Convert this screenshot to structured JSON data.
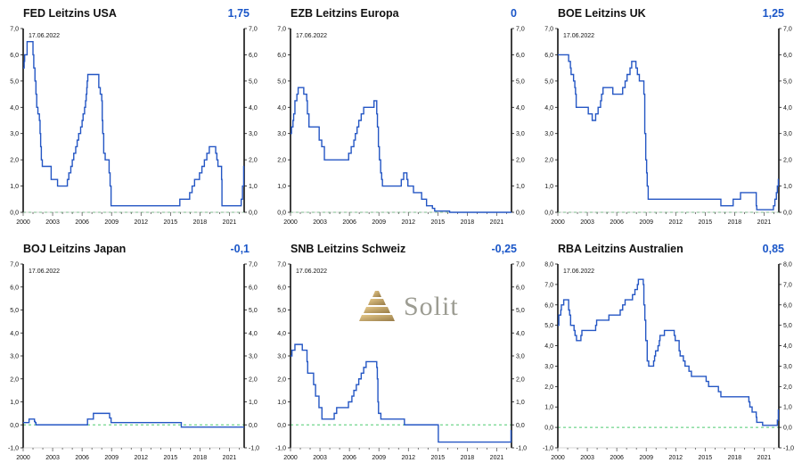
{
  "watermark": {
    "text": "Solit",
    "text_color": "#8f8f84",
    "pyramid_color_light": "#e3c27a",
    "pyramid_color_dark": "#8a6a2f"
  },
  "colors": {
    "line": "#2456c4",
    "value": "#1a56c8",
    "zero_line": "#4ecb71",
    "axis": "#111111"
  },
  "chart_data": [
    {
      "type": "line",
      "step": true,
      "title": "FED Leitzins USA",
      "current_value": "1,75",
      "annotation": "17.06.2022",
      "x_range": [
        2000,
        2022.5
      ],
      "y_range": [
        0,
        7
      ],
      "y_tick_step": 1,
      "x_ticks": [
        2000,
        2003,
        2006,
        2009,
        2012,
        2015,
        2018,
        2021
      ],
      "zero_line": true,
      "grid": false,
      "legend": false,
      "points": [
        [
          2000.0,
          5.5
        ],
        [
          2000.1,
          5.75
        ],
        [
          2000.15,
          6.0
        ],
        [
          2000.4,
          6.5
        ],
        [
          2001.0,
          6.0
        ],
        [
          2001.08,
          5.5
        ],
        [
          2001.2,
          5.0
        ],
        [
          2001.3,
          4.5
        ],
        [
          2001.38,
          4.0
        ],
        [
          2001.5,
          3.75
        ],
        [
          2001.65,
          3.5
        ],
        [
          2001.72,
          3.0
        ],
        [
          2001.78,
          2.5
        ],
        [
          2001.85,
          2.0
        ],
        [
          2001.95,
          1.75
        ],
        [
          2002.85,
          1.25
        ],
        [
          2003.5,
          1.0
        ],
        [
          2004.5,
          1.25
        ],
        [
          2004.65,
          1.5
        ],
        [
          2004.85,
          1.75
        ],
        [
          2005.0,
          2.0
        ],
        [
          2005.15,
          2.25
        ],
        [
          2005.35,
          2.5
        ],
        [
          2005.5,
          2.75
        ],
        [
          2005.65,
          3.0
        ],
        [
          2005.85,
          3.25
        ],
        [
          2006.0,
          3.5
        ],
        [
          2006.1,
          3.75
        ],
        [
          2006.25,
          4.0
        ],
        [
          2006.35,
          4.25
        ],
        [
          2006.42,
          4.5
        ],
        [
          2006.48,
          4.75
        ],
        [
          2006.52,
          5.0
        ],
        [
          2006.58,
          5.25
        ],
        [
          2007.7,
          4.75
        ],
        [
          2007.85,
          4.5
        ],
        [
          2008.0,
          4.25
        ],
        [
          2008.05,
          3.5
        ],
        [
          2008.1,
          3.0
        ],
        [
          2008.2,
          2.25
        ],
        [
          2008.35,
          2.0
        ],
        [
          2008.75,
          1.5
        ],
        [
          2008.85,
          1.0
        ],
        [
          2008.95,
          0.25
        ],
        [
          2015.95,
          0.5
        ],
        [
          2016.95,
          0.75
        ],
        [
          2017.2,
          1.0
        ],
        [
          2017.45,
          1.25
        ],
        [
          2017.95,
          1.5
        ],
        [
          2018.2,
          1.75
        ],
        [
          2018.45,
          2.0
        ],
        [
          2018.7,
          2.25
        ],
        [
          2018.95,
          2.5
        ],
        [
          2019.6,
          2.25
        ],
        [
          2019.72,
          2.0
        ],
        [
          2019.83,
          1.75
        ],
        [
          2020.2,
          1.25
        ],
        [
          2020.24,
          0.25
        ],
        [
          2022.2,
          0.5
        ],
        [
          2022.33,
          1.0
        ],
        [
          2022.45,
          1.75
        ]
      ]
    },
    {
      "type": "line",
      "step": true,
      "title": "EZB Leitzins Europa",
      "current_value": "0",
      "annotation": "17.06.2022",
      "x_range": [
        2000,
        2022.5
      ],
      "y_range": [
        0,
        7
      ],
      "y_tick_step": 1,
      "x_ticks": [
        2000,
        2003,
        2006,
        2009,
        2012,
        2015,
        2018,
        2021
      ],
      "zero_line": true,
      "grid": false,
      "legend": false,
      "points": [
        [
          2000.0,
          3.0
        ],
        [
          2000.1,
          3.25
        ],
        [
          2000.25,
          3.5
        ],
        [
          2000.32,
          3.75
        ],
        [
          2000.45,
          4.25
        ],
        [
          2000.65,
          4.5
        ],
        [
          2000.78,
          4.75
        ],
        [
          2001.35,
          4.5
        ],
        [
          2001.65,
          4.25
        ],
        [
          2001.72,
          3.75
        ],
        [
          2001.88,
          3.25
        ],
        [
          2002.92,
          2.75
        ],
        [
          2003.18,
          2.5
        ],
        [
          2003.45,
          2.0
        ],
        [
          2005.92,
          2.25
        ],
        [
          2006.18,
          2.5
        ],
        [
          2006.45,
          2.75
        ],
        [
          2006.6,
          3.0
        ],
        [
          2006.78,
          3.25
        ],
        [
          2006.95,
          3.5
        ],
        [
          2007.2,
          3.75
        ],
        [
          2007.45,
          4.0
        ],
        [
          2008.5,
          4.25
        ],
        [
          2008.78,
          3.75
        ],
        [
          2008.85,
          3.25
        ],
        [
          2008.95,
          2.5
        ],
        [
          2009.05,
          2.0
        ],
        [
          2009.18,
          1.5
        ],
        [
          2009.28,
          1.25
        ],
        [
          2009.36,
          1.0
        ],
        [
          2011.28,
          1.25
        ],
        [
          2011.52,
          1.5
        ],
        [
          2011.85,
          1.25
        ],
        [
          2011.95,
          1.0
        ],
        [
          2012.52,
          0.75
        ],
        [
          2013.35,
          0.5
        ],
        [
          2013.85,
          0.25
        ],
        [
          2014.45,
          0.15
        ],
        [
          2014.68,
          0.05
        ],
        [
          2016.2,
          0.0
        ]
      ]
    },
    {
      "type": "line",
      "step": true,
      "title": "BOE Leitzins UK",
      "current_value": "1,25",
      "annotation": "17.06.2022",
      "x_range": [
        2000,
        2022.5
      ],
      "y_range": [
        0,
        7
      ],
      "y_tick_step": 1,
      "x_ticks": [
        2000,
        2003,
        2006,
        2009,
        2012,
        2015,
        2018,
        2021
      ],
      "zero_line": true,
      "grid": false,
      "legend": false,
      "points": [
        [
          2000.0,
          6.0
        ],
        [
          2001.1,
          5.75
        ],
        [
          2001.28,
          5.5
        ],
        [
          2001.35,
          5.25
        ],
        [
          2001.6,
          5.0
        ],
        [
          2001.73,
          4.75
        ],
        [
          2001.8,
          4.5
        ],
        [
          2001.87,
          4.0
        ],
        [
          2003.1,
          3.75
        ],
        [
          2003.5,
          3.5
        ],
        [
          2003.85,
          3.75
        ],
        [
          2004.1,
          4.0
        ],
        [
          2004.35,
          4.25
        ],
        [
          2004.45,
          4.5
        ],
        [
          2004.6,
          4.75
        ],
        [
          2005.6,
          4.5
        ],
        [
          2006.6,
          4.75
        ],
        [
          2006.85,
          5.0
        ],
        [
          2007.05,
          5.25
        ],
        [
          2007.35,
          5.5
        ],
        [
          2007.52,
          5.75
        ],
        [
          2007.95,
          5.5
        ],
        [
          2008.1,
          5.25
        ],
        [
          2008.3,
          5.0
        ],
        [
          2008.76,
          4.5
        ],
        [
          2008.85,
          3.0
        ],
        [
          2008.95,
          2.0
        ],
        [
          2009.04,
          1.5
        ],
        [
          2009.1,
          1.0
        ],
        [
          2009.2,
          0.5
        ],
        [
          2016.6,
          0.25
        ],
        [
          2017.85,
          0.5
        ],
        [
          2018.6,
          0.75
        ],
        [
          2020.2,
          0.25
        ],
        [
          2020.25,
          0.1
        ],
        [
          2021.95,
          0.25
        ],
        [
          2022.1,
          0.5
        ],
        [
          2022.25,
          0.75
        ],
        [
          2022.35,
          1.0
        ],
        [
          2022.45,
          1.25
        ]
      ]
    },
    {
      "type": "line",
      "step": true,
      "title": "BOJ Leitzins Japan",
      "current_value": "-0,1",
      "annotation": "17.06.2022",
      "x_range": [
        2000,
        2022.5
      ],
      "y_range": [
        -1,
        7
      ],
      "y_tick_step": 1,
      "x_ticks": [
        2000,
        2003,
        2006,
        2009,
        2012,
        2015,
        2018,
        2021
      ],
      "zero_line": true,
      "grid": false,
      "legend": false,
      "points": [
        [
          2000.0,
          0.1
        ],
        [
          2000.6,
          0.25
        ],
        [
          2001.15,
          0.15
        ],
        [
          2001.22,
          0.1
        ],
        [
          2001.3,
          0.0
        ],
        [
          2006.55,
          0.25
        ],
        [
          2007.15,
          0.5
        ],
        [
          2008.8,
          0.3
        ],
        [
          2008.95,
          0.1
        ],
        [
          2016.1,
          -0.1
        ]
      ]
    },
    {
      "type": "line",
      "step": true,
      "title": "SNB Leitzins Schweiz",
      "current_value": "-0,25",
      "annotation": "17.06.2022",
      "x_range": [
        2000,
        2022.5
      ],
      "y_range": [
        -1,
        7
      ],
      "y_tick_step": 1,
      "x_ticks": [
        2000,
        2003,
        2006,
        2009,
        2012,
        2015,
        2018,
        2021
      ],
      "zero_line": true,
      "grid": false,
      "legend": false,
      "points": [
        [
          2000.0,
          3.0
        ],
        [
          2000.15,
          3.25
        ],
        [
          2000.45,
          3.5
        ],
        [
          2001.2,
          3.25
        ],
        [
          2001.68,
          2.75
        ],
        [
          2001.75,
          2.25
        ],
        [
          2002.35,
          1.75
        ],
        [
          2002.55,
          1.25
        ],
        [
          2002.9,
          0.75
        ],
        [
          2003.2,
          0.25
        ],
        [
          2004.45,
          0.5
        ],
        [
          2004.7,
          0.75
        ],
        [
          2005.9,
          1.0
        ],
        [
          2006.25,
          1.25
        ],
        [
          2006.45,
          1.5
        ],
        [
          2006.7,
          1.75
        ],
        [
          2006.95,
          2.0
        ],
        [
          2007.2,
          2.25
        ],
        [
          2007.45,
          2.5
        ],
        [
          2007.7,
          2.75
        ],
        [
          2008.78,
          2.5
        ],
        [
          2008.84,
          2.0
        ],
        [
          2008.9,
          1.0
        ],
        [
          2008.96,
          0.5
        ],
        [
          2009.2,
          0.25
        ],
        [
          2011.6,
          0.0
        ],
        [
          2015.05,
          -0.75
        ],
        [
          2022.45,
          -0.25
        ]
      ]
    },
    {
      "type": "line",
      "step": true,
      "title": "RBA Leitzins Australien",
      "current_value": "0,85",
      "annotation": "17.06.2022",
      "x_range": [
        2000,
        2022.5
      ],
      "y_range": [
        -1,
        8
      ],
      "y_tick_step": 1,
      "x_ticks": [
        2000,
        2003,
        2006,
        2009,
        2012,
        2015,
        2018,
        2021
      ],
      "zero_line": true,
      "grid": false,
      "legend": false,
      "points": [
        [
          2000.0,
          5.0
        ],
        [
          2000.1,
          5.5
        ],
        [
          2000.3,
          5.75
        ],
        [
          2000.36,
          6.0
        ],
        [
          2000.6,
          6.25
        ],
        [
          2001.1,
          5.75
        ],
        [
          2001.2,
          5.5
        ],
        [
          2001.3,
          5.0
        ],
        [
          2001.65,
          4.75
        ],
        [
          2001.75,
          4.5
        ],
        [
          2001.9,
          4.25
        ],
        [
          2002.35,
          4.5
        ],
        [
          2002.45,
          4.75
        ],
        [
          2003.85,
          5.0
        ],
        [
          2003.95,
          5.25
        ],
        [
          2005.2,
          5.5
        ],
        [
          2006.35,
          5.75
        ],
        [
          2006.6,
          6.0
        ],
        [
          2006.85,
          6.25
        ],
        [
          2007.6,
          6.5
        ],
        [
          2007.85,
          6.75
        ],
        [
          2008.1,
          7.0
        ],
        [
          2008.2,
          7.25
        ],
        [
          2008.7,
          7.0
        ],
        [
          2008.76,
          6.0
        ],
        [
          2008.86,
          5.25
        ],
        [
          2008.95,
          4.25
        ],
        [
          2009.1,
          3.25
        ],
        [
          2009.25,
          3.0
        ],
        [
          2009.75,
          3.25
        ],
        [
          2009.85,
          3.5
        ],
        [
          2009.95,
          3.75
        ],
        [
          2010.2,
          4.0
        ],
        [
          2010.33,
          4.25
        ],
        [
          2010.4,
          4.5
        ],
        [
          2010.85,
          4.75
        ],
        [
          2011.85,
          4.5
        ],
        [
          2011.95,
          4.25
        ],
        [
          2012.35,
          3.75
        ],
        [
          2012.45,
          3.5
        ],
        [
          2012.78,
          3.25
        ],
        [
          2012.95,
          3.0
        ],
        [
          2013.35,
          2.75
        ],
        [
          2013.6,
          2.5
        ],
        [
          2015.1,
          2.25
        ],
        [
          2015.35,
          2.0
        ],
        [
          2016.35,
          1.75
        ],
        [
          2016.6,
          1.5
        ],
        [
          2019.45,
          1.25
        ],
        [
          2019.55,
          1.0
        ],
        [
          2019.78,
          0.75
        ],
        [
          2020.2,
          0.5
        ],
        [
          2020.25,
          0.25
        ],
        [
          2020.85,
          0.1
        ],
        [
          2022.35,
          0.35
        ],
        [
          2022.45,
          0.85
        ]
      ]
    }
  ]
}
